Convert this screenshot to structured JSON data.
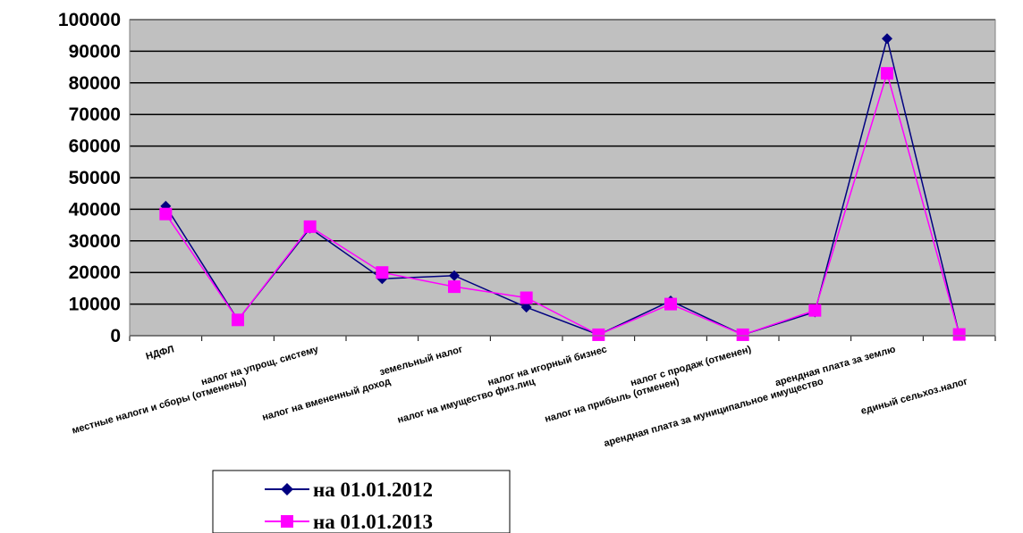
{
  "chart_data": {
    "type": "line",
    "title": "",
    "xlabel": "",
    "ylabel": "",
    "ylim": [
      0,
      100000
    ],
    "yticks": [
      "0",
      "10000",
      "20000",
      "30000",
      "40000",
      "50000",
      "60000",
      "70000",
      "80000",
      "90000",
      "100000"
    ],
    "grid": true,
    "plot_background": "#c0c0c0",
    "legend_position": "bottom-left",
    "categories": [
      "НДФЛ",
      "местные налоги и сборы (отменены)",
      "налог на упрощ. систему",
      "налог на вмененный доход",
      "земельный налог",
      "налог на имущество физ.лиц",
      "налог на игорный бизнес",
      "налог на прибыль (отменен)",
      "налог с продаж (отменен)",
      "арендная плата за муниципальное имущество",
      "арендная плата за землю",
      "единый сельхоз.налог"
    ],
    "series": [
      {
        "name": "на 01.01.2012",
        "color": "#000080",
        "marker": "diamond",
        "values": [
          41000,
          5000,
          34000,
          18000,
          19000,
          9000,
          300,
          11000,
          300,
          7500,
          94000,
          400
        ]
      },
      {
        "name": "на 01.01.2013",
        "color": "#ff00ff",
        "marker": "square",
        "values": [
          38500,
          5000,
          34500,
          20000,
          15500,
          12000,
          300,
          10000,
          300,
          8000,
          83000,
          400
        ]
      }
    ]
  }
}
